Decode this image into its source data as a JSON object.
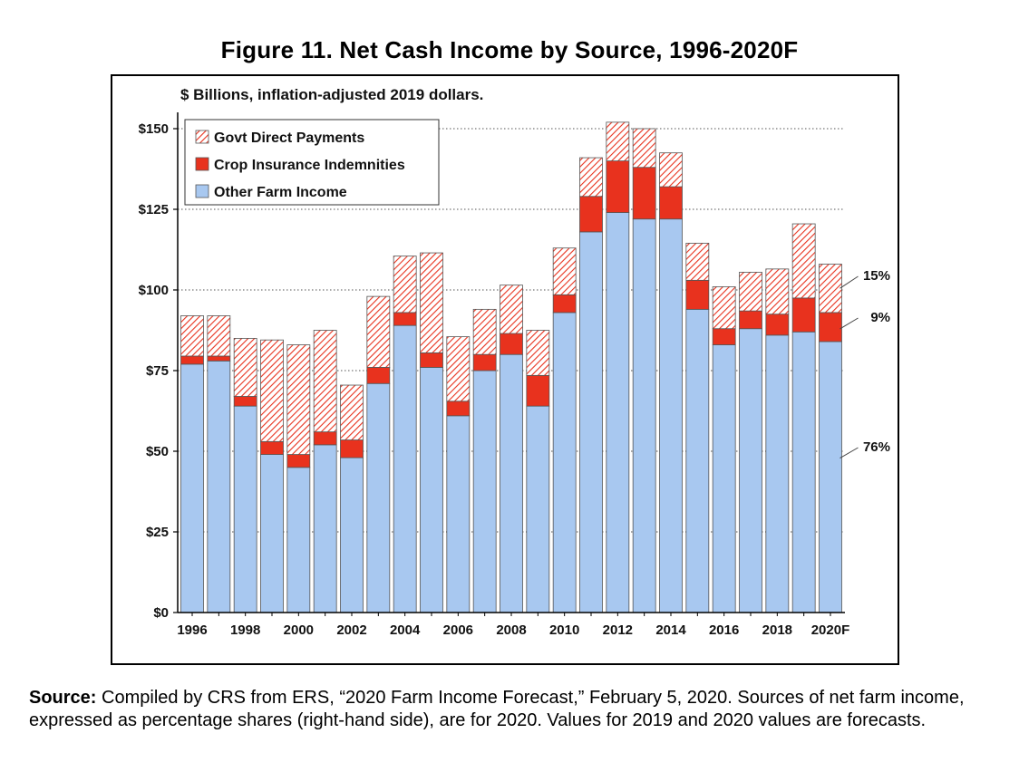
{
  "figure_title": "Figure 11. Net Cash Income by Source, 1996-2020F",
  "source": {
    "label": "Source:",
    "text": " Compiled by CRS from ERS, “2020 Farm Income Forecast,” February 5, 2020. Sources of net farm income, expressed as percentage shares (right-hand side), are for 2020. Values for 2019 and 2020 values are forecasts."
  },
  "colors": {
    "other_farm_income": "#a8c8f0",
    "crop_insurance": "#e8321e",
    "govt_direct_payments_stripe": "#e8321e",
    "gridline": "#555555"
  },
  "chart_data": {
    "type": "bar",
    "stacked": true,
    "title": "",
    "subtitle": "$ Billions, inflation-adjusted 2019 dollars.",
    "xlabel": "",
    "ylabel": "",
    "ylim": [
      0,
      150
    ],
    "yticks": [
      0,
      25,
      50,
      75,
      100,
      125,
      150
    ],
    "ytick_labels": [
      "$0",
      "$25",
      "$50",
      "$75",
      "$100",
      "$125",
      "$150"
    ],
    "grid": "horizontal dotted",
    "legend_position": "top-left",
    "categories": [
      "1996",
      "1997",
      "1998",
      "1999",
      "2000",
      "2001",
      "2002",
      "2003",
      "2004",
      "2005",
      "2006",
      "2007",
      "2008",
      "2009",
      "2010",
      "2011",
      "2012",
      "2013",
      "2014",
      "2015",
      "2016",
      "2017",
      "2018",
      "2019",
      "2020F"
    ],
    "xtick_labels": [
      "1996",
      "",
      "1998",
      "",
      "2000",
      "",
      "2002",
      "",
      "2004",
      "",
      "2006",
      "",
      "2008",
      "",
      "2010",
      "",
      "2012",
      "",
      "2014",
      "",
      "2016",
      "",
      "2018",
      "",
      "2020F"
    ],
    "series": [
      {
        "name": "Other Farm Income",
        "key": "other",
        "values": [
          77,
          78,
          64,
          49,
          45,
          52,
          48,
          71,
          89,
          76,
          61,
          75,
          80,
          64,
          93,
          118,
          124,
          122,
          122,
          94,
          83,
          88,
          86,
          87,
          84
        ]
      },
      {
        "name": "Crop Insurance Indemnities",
        "key": "crop",
        "values": [
          2.5,
          1.5,
          3,
          4,
          4,
          4,
          5.5,
          5,
          4,
          4.5,
          4.5,
          5,
          6.5,
          9.5,
          5.5,
          11,
          16,
          16,
          10,
          9,
          5,
          5.5,
          6.5,
          10.5,
          9
        ]
      },
      {
        "name": "Govt Direct Payments",
        "key": "govt",
        "values": [
          12.5,
          12.5,
          18,
          31.5,
          34,
          31.5,
          17,
          22,
          17.5,
          31,
          20,
          14,
          15,
          14,
          14.5,
          12,
          12,
          12,
          10.5,
          11.5,
          13,
          12,
          14,
          23,
          15
        ]
      }
    ],
    "legend_order": [
      "Govt Direct Payments",
      "Crop Insurance Indemnities",
      "Other Farm Income"
    ],
    "annotations": [
      {
        "text": "15%",
        "series": "Govt Direct Payments"
      },
      {
        "text": "9%",
        "series": "Crop Insurance Indemnities"
      },
      {
        "text": "76%",
        "series": "Other Farm Income"
      }
    ]
  }
}
